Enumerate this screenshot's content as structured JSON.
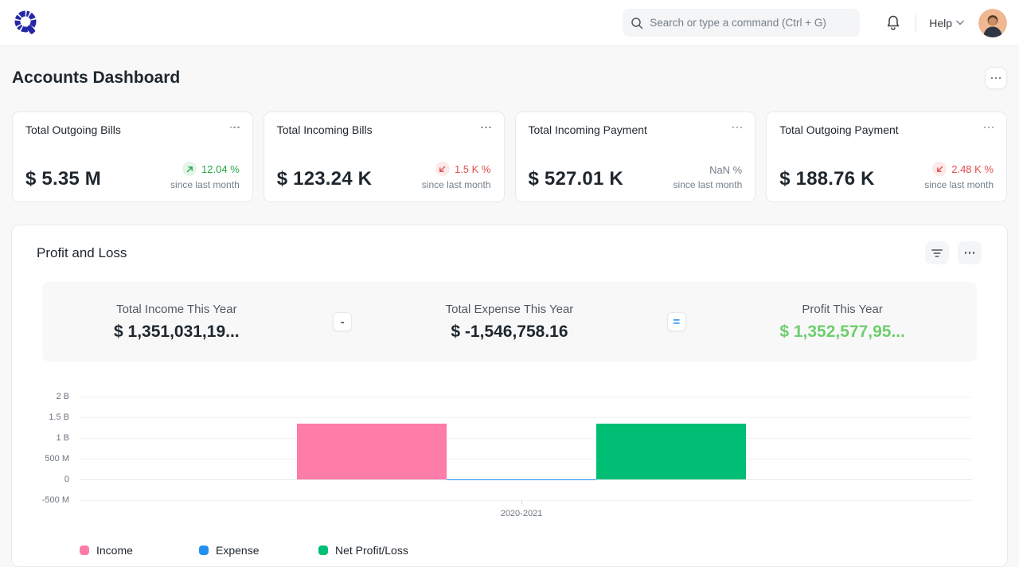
{
  "navbar": {
    "search_placeholder": "Search or type a command (Ctrl + G)",
    "help_label": "Help"
  },
  "page": {
    "title": "Accounts Dashboard"
  },
  "number_cards": [
    {
      "title": "Total Outgoing Bills",
      "value": "$ 5.35 M",
      "change": "12.04 %",
      "direction": "up",
      "caption": "since last month"
    },
    {
      "title": "Total Incoming Bills",
      "value": "$ 123.24 K",
      "change": "1.5 K %",
      "direction": "down",
      "caption": "since last month"
    },
    {
      "title": "Total Incoming Payment",
      "value": "$ 527.01 K",
      "change": "NaN %",
      "direction": "none",
      "caption": "since last month"
    },
    {
      "title": "Total Outgoing Payment",
      "value": "$ 188.76 K",
      "change": "2.48 K %",
      "direction": "down",
      "caption": "since last month"
    }
  ],
  "status_colors": {
    "up": "#28a745",
    "down": "#e24c4c",
    "neutral": "#74808b"
  },
  "profit_loss": {
    "title": "Profit and Loss",
    "operators": {
      "minus": "-",
      "equals": "="
    },
    "summary": [
      {
        "label": "Total Income This Year",
        "value": "$ 1,351,031,19..."
      },
      {
        "label": "Total Expense This Year",
        "value": "$ -1,546,758.16"
      },
      {
        "label": "Profit This Year",
        "value": "$ 1,352,577,95..."
      }
    ],
    "profit_color": "#6ece6e",
    "chart_data": {
      "type": "bar",
      "categories": [
        "2020-2021"
      ],
      "series": [
        {
          "name": "Income",
          "color": "#fd7ca8",
          "values": [
            1351031190
          ]
        },
        {
          "name": "Expense",
          "color": "#2490ef",
          "values": [
            -1546758.16
          ]
        },
        {
          "name": "Net Profit/Loss",
          "color": "#00be73",
          "values": [
            1352577950
          ]
        }
      ],
      "ylabel": "",
      "xlabel": "",
      "ylim": [
        -500000000,
        2000000000
      ],
      "ytick_step": 500000000,
      "yticks": [
        "2 B",
        "1.5 B",
        "1 B",
        "500 M",
        "0",
        "-500 M"
      ],
      "grid": true,
      "legend_position": "bottom"
    }
  }
}
